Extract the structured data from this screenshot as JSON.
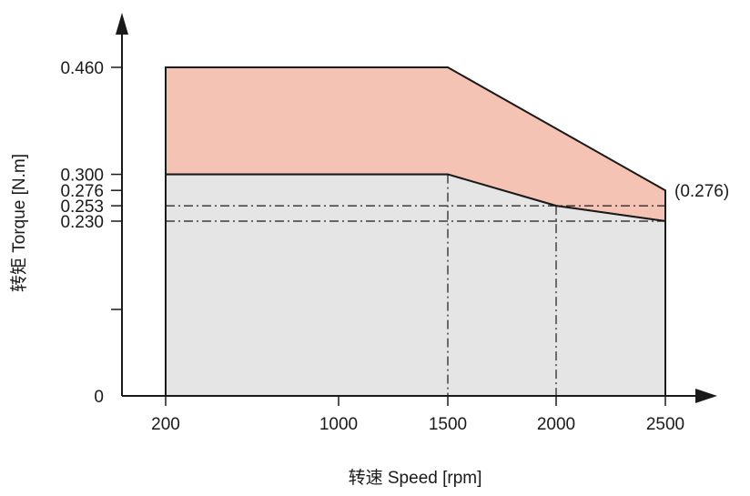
{
  "chart_data": {
    "type": "area",
    "xlabel": "转速 Speed [rpm]",
    "ylabel": "转矩 Torque [N.m]",
    "x_ticks": [
      "200",
      "1000",
      "1500",
      "2000",
      "2500"
    ],
    "y_ticks": [
      "0",
      "0.230",
      "0.253",
      "0.276",
      "0.300",
      "0.460"
    ],
    "series": [
      {
        "color": "#f4c3b3",
        "x": [
          200,
          1500,
          2500,
          2500,
          2000,
          1500,
          200
        ],
        "y": [
          0.46,
          0.46,
          0.276,
          0.23,
          0.253,
          0.3,
          0.3
        ]
      },
      {
        "color": "#e5e5e5",
        "x": [
          200,
          1500,
          2000,
          2500,
          2500,
          200
        ],
        "y": [
          0.3,
          0.3,
          0.253,
          0.23,
          0,
          0
        ]
      }
    ],
    "reference_lines": {
      "horizontal_dashdot": [
        0.253,
        0.23
      ],
      "vertical_dashdot": [
        1500,
        2000
      ]
    },
    "annotations": [
      {
        "text": "(0.276)",
        "x": 2500,
        "y": 0.276
      }
    ],
    "colors": {
      "upper_area": "#f4c3b3",
      "lower_area": "#e5e5e5",
      "line": "#1a1a1a"
    },
    "grid": false,
    "legend": "none"
  }
}
